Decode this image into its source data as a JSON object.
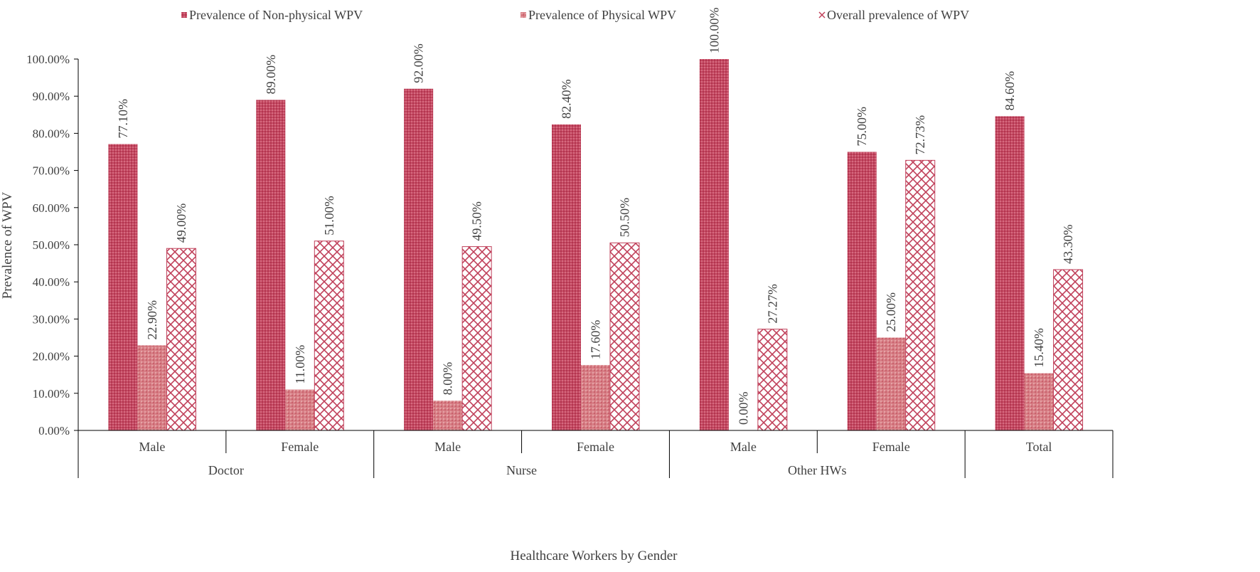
{
  "chart_data": {
    "type": "bar",
    "title": "",
    "xlabel": "Healthcare Workers by Gender",
    "ylabel": "Prevalence of WPV",
    "ylim": [
      0,
      100
    ],
    "y_ticks": [
      "0.00%",
      "10.00%",
      "20.00%",
      "30.00%",
      "40.00%",
      "50.00%",
      "60.00%",
      "70.00%",
      "80.00%",
      "90.00%",
      "100.00%"
    ],
    "categories": [
      "Male",
      "Female",
      "Male",
      "Female",
      "Male",
      "Female",
      "Total"
    ],
    "groups": [
      {
        "label": "Doctor",
        "span": 2
      },
      {
        "label": "Nurse",
        "span": 2
      },
      {
        "label": "Other HWs",
        "span": 2
      },
      {
        "label": "",
        "span": 1
      }
    ],
    "series": [
      {
        "name": "Prevalence of Non-physical WPV",
        "values": [
          77.1,
          89.0,
          92.0,
          82.4,
          100.0,
          75.0,
          84.6
        ],
        "labels": [
          "77.10%",
          "89.00%",
          "92.00%",
          "82.40%",
          "100.00%",
          "75.00%",
          "84.60%"
        ],
        "color": "#c0405a",
        "pattern": "fine-dots"
      },
      {
        "name": "Prevalence of Physical WPV",
        "values": [
          22.9,
          11.0,
          8.0,
          17.6,
          0.0,
          25.0,
          15.4
        ],
        "labels": [
          "22.90%",
          "11.00%",
          "8.00%",
          "17.60%",
          "0.00%",
          "25.00%",
          "15.40%"
        ],
        "color": "#d9707a",
        "pattern": "dots"
      },
      {
        "name": "Overall prevalence of WPV",
        "values": [
          49.0,
          51.0,
          49.5,
          50.5,
          27.27,
          72.73,
          43.3
        ],
        "labels": [
          "49.00%",
          "51.00%",
          "49.50%",
          "50.50%",
          "27.27%",
          "72.73%",
          "43.30%"
        ],
        "color": "#c0405a",
        "pattern": "crosshatch"
      }
    ],
    "legend": "top",
    "grid": false
  }
}
